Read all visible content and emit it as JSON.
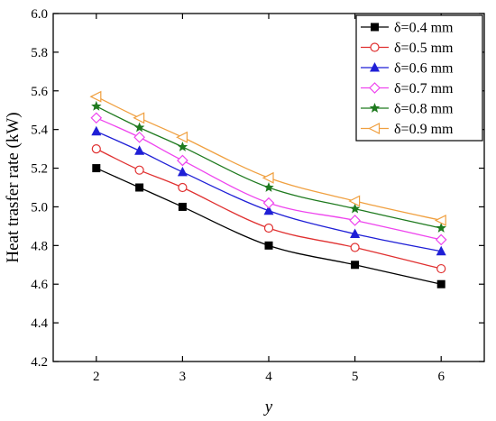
{
  "chart_data": {
    "type": "line",
    "title": "",
    "xlabel": "y",
    "ylabel": "Heat trasfer rate (kW)",
    "xlim": [
      1.5,
      6.5
    ],
    "ylim": [
      4.2,
      6.0
    ],
    "xticks": [
      2,
      3,
      4,
      5,
      6
    ],
    "yticks": [
      4.2,
      4.4,
      4.6,
      4.8,
      5.0,
      5.2,
      5.4,
      5.6,
      5.8,
      6.0
    ],
    "x": [
      2,
      2.5,
      3,
      4,
      5,
      6
    ],
    "grid": false,
    "legend_position": "top-right",
    "series": [
      {
        "name": "δ=0.4 mm",
        "color": "#000000",
        "marker": "filled-square",
        "values": [
          5.2,
          5.1,
          5.0,
          4.8,
          4.7,
          4.6
        ]
      },
      {
        "name": "δ=0.5 mm",
        "color": "#e03030",
        "marker": "open-circle",
        "values": [
          5.3,
          5.19,
          5.1,
          4.89,
          4.79,
          4.68
        ]
      },
      {
        "name": "δ=0.6 mm",
        "color": "#1f1fd6",
        "marker": "filled-triangle",
        "values": [
          5.39,
          5.29,
          5.18,
          4.98,
          4.86,
          4.77
        ]
      },
      {
        "name": "δ=0.7 mm",
        "color": "#ee44ee",
        "marker": "open-diamond",
        "values": [
          5.46,
          5.36,
          5.24,
          5.02,
          4.93,
          4.83
        ]
      },
      {
        "name": "δ=0.8 mm",
        "color": "#1f7a1f",
        "marker": "star",
        "values": [
          5.52,
          5.41,
          5.31,
          5.1,
          4.99,
          4.89
        ]
      },
      {
        "name": "δ=0.9 mm",
        "color": "#f0a040",
        "marker": "open-left-triangle",
        "values": [
          5.57,
          5.46,
          5.36,
          5.15,
          5.03,
          4.93
        ]
      }
    ]
  }
}
